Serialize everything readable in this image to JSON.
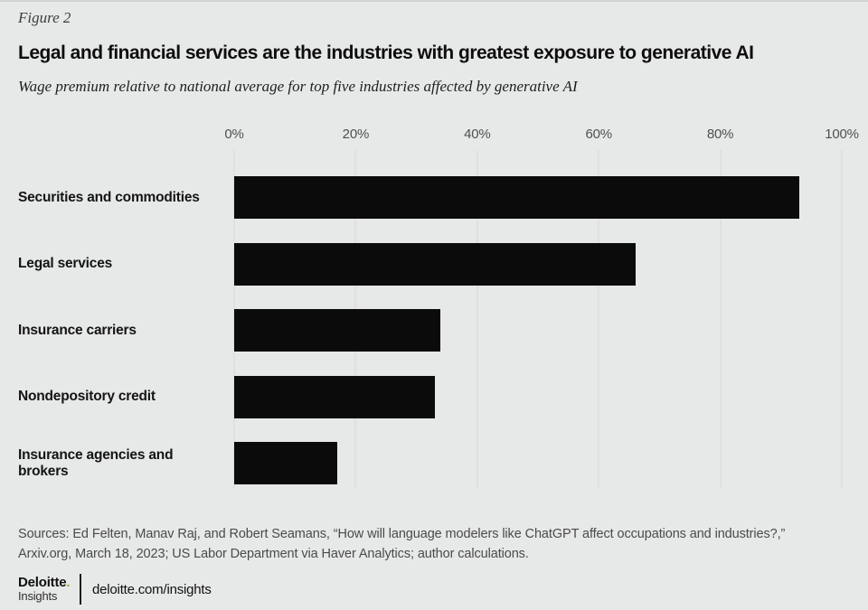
{
  "figure_label": "Figure 2",
  "title": "Legal and financial services are the industries with greatest exposure to generative AI",
  "subtitle": "Wage premium relative to national average for top five industries affected by generative AI",
  "chart_data": {
    "type": "bar",
    "orientation": "horizontal",
    "categories": [
      "Securities and commodities",
      "Legal services",
      "Insurance carriers",
      "Nondepository credit",
      "Insurance agencies and brokers"
    ],
    "values": [
      93,
      66,
      34,
      33,
      17
    ],
    "unit": "%",
    "xlabel": "",
    "ylabel": "",
    "xlim": [
      0,
      100
    ],
    "x_ticks": [
      "0%",
      "20%",
      "40%",
      "60%",
      "80%",
      "100%"
    ],
    "x_tick_values": [
      0,
      20,
      40,
      60,
      80,
      100
    ],
    "grid": true,
    "legend": false,
    "bar_color": "#0b0b0c"
  },
  "sources": "Sources: Ed Felten, Manav Raj, and Robert Seamans, “How will language modelers like ChatGPT affect occupations and industries?,” Arxiv.org, March 18, 2023; US Labor Department via Haver Analytics; author calculations.",
  "footer": {
    "brand_name": "Deloitte",
    "brand_dot": ".",
    "brand_sub": "Insights",
    "link": "deloitte.com/insights"
  },
  "colors": {
    "background": "#e7e8e8",
    "bar": "#0b0b0c",
    "gridline": "#d8d9d9",
    "accent_green": "#86bc25"
  }
}
